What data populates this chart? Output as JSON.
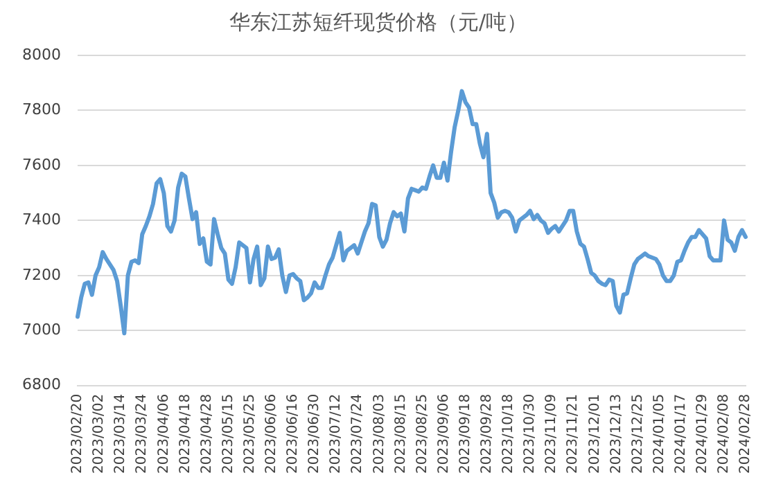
{
  "chart_data": {
    "type": "line",
    "title": "华东江苏短纤现货价格（元/吨）",
    "categories": [
      "2023/02/20",
      null,
      null,
      null,
      null,
      null,
      "2023/03/02",
      null,
      null,
      null,
      null,
      null,
      "2023/03/14",
      null,
      null,
      null,
      null,
      null,
      "2023/03/24",
      null,
      null,
      null,
      null,
      null,
      "2023/04/06",
      null,
      null,
      null,
      null,
      null,
      "2023/04/18",
      null,
      null,
      null,
      null,
      null,
      "2023/04/28",
      null,
      null,
      null,
      null,
      null,
      "2023/05/15",
      null,
      null,
      null,
      null,
      null,
      "2023/05/25",
      null,
      null,
      null,
      null,
      null,
      "2023/06/06",
      null,
      null,
      null,
      null,
      null,
      "2023/06/16",
      null,
      null,
      null,
      null,
      null,
      "2023/06/30",
      null,
      null,
      null,
      null,
      null,
      "2023/07/12",
      null,
      null,
      null,
      null,
      null,
      "2023/07/24",
      null,
      null,
      null,
      null,
      null,
      "2023/08/03",
      null,
      null,
      null,
      null,
      null,
      "2023/08/15",
      null,
      null,
      null,
      null,
      null,
      "2023/08/25",
      null,
      null,
      null,
      null,
      null,
      "2023/09/06",
      null,
      null,
      null,
      null,
      null,
      "2023/09/18",
      null,
      null,
      null,
      null,
      null,
      "2023/09/28",
      null,
      null,
      null,
      null,
      null,
      "2023/10/18",
      null,
      null,
      null,
      null,
      null,
      "2023/10/30",
      null,
      null,
      null,
      null,
      null,
      "2023/11/09",
      null,
      null,
      null,
      null,
      null,
      "2023/11/21",
      null,
      null,
      null,
      null,
      null,
      "2023/12/01",
      null,
      null,
      null,
      null,
      null,
      "2023/12/13",
      null,
      null,
      null,
      null,
      null,
      "2023/12/25",
      null,
      null,
      null,
      null,
      null,
      "2024/01/05",
      null,
      null,
      null,
      null,
      null,
      "2024/01/17",
      null,
      null,
      null,
      null,
      null,
      "2024/01/29",
      null,
      null,
      null,
      null,
      null,
      "2024/02/08",
      null,
      null,
      null,
      null,
      null,
      "2024/02/28"
    ],
    "series": [
      {
        "color": "#5b9bd5",
        "values": [
          7050,
          7120,
          7170,
          7175,
          7130,
          7200,
          7230,
          7285,
          7260,
          7240,
          7220,
          7180,
          7090,
          6990,
          7200,
          7250,
          7255,
          7245,
          7350,
          7380,
          7415,
          7460,
          7535,
          7550,
          7500,
          7380,
          7360,
          7400,
          7520,
          7570,
          7560,
          7480,
          7405,
          7430,
          7315,
          7335,
          7250,
          7240,
          7405,
          7350,
          7300,
          7280,
          7185,
          7170,
          7230,
          7320,
          7310,
          7300,
          7175,
          7260,
          7305,
          7165,
          7190,
          7305,
          7260,
          7265,
          7295,
          7200,
          7140,
          7200,
          7205,
          7190,
          7180,
          7110,
          7120,
          7135,
          7175,
          7155,
          7155,
          7200,
          7240,
          7265,
          7310,
          7355,
          7255,
          7290,
          7300,
          7310,
          7280,
          7320,
          7360,
          7390,
          7460,
          7455,
          7340,
          7305,
          7330,
          7390,
          7430,
          7415,
          7425,
          7360,
          7480,
          7515,
          7510,
          7505,
          7520,
          7515,
          7560,
          7600,
          7555,
          7555,
          7610,
          7545,
          7650,
          7740,
          7800,
          7870,
          7830,
          7810,
          7750,
          7750,
          7680,
          7630,
          7715,
          7500,
          7465,
          7410,
          7430,
          7435,
          7430,
          7410,
          7360,
          7400,
          7410,
          7420,
          7435,
          7405,
          7420,
          7400,
          7390,
          7355,
          7370,
          7380,
          7360,
          7380,
          7400,
          7435,
          7435,
          7360,
          7315,
          7305,
          7260,
          7210,
          7200,
          7180,
          7170,
          7165,
          7185,
          7180,
          7090,
          7065,
          7130,
          7135,
          7190,
          7240,
          7260,
          7270,
          7280,
          7270,
          7265,
          7260,
          7240,
          7200,
          7180,
          7180,
          7200,
          7250,
          7255,
          7290,
          7320,
          7340,
          7340,
          7365,
          7350,
          7335,
          7270,
          7255,
          7255,
          7255,
          7400,
          7330,
          7320,
          7290,
          7340,
          7365,
          7340
        ]
      }
    ],
    "ylim": [
      6800,
      8000
    ],
    "yticks": [
      6800,
      7000,
      7200,
      7400,
      7600,
      7800,
      8000
    ],
    "grid": "y",
    "legend": false,
    "marker": "none",
    "line_style": "solid"
  }
}
